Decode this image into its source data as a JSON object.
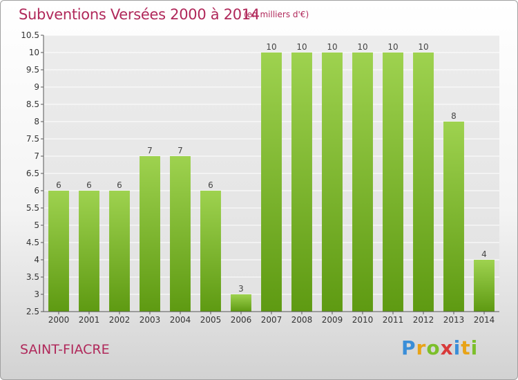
{
  "title": "Subventions Versées 2000 à 2014",
  "unit_note": "(en milliers d'€)",
  "commune": "SAINT-FIACRE",
  "logo": {
    "text": "Proxiti",
    "letters": [
      "P",
      "r",
      "o",
      "x",
      "i",
      "t",
      "i"
    ]
  },
  "colors": {
    "title": "#b0285a",
    "bar_top": "#9ed24f",
    "bar_bottom": "#5e9a12",
    "grid": "#ffffff",
    "axis": "#555555"
  },
  "chart_data": {
    "type": "bar",
    "categories": [
      "2000",
      "2001",
      "2002",
      "2003",
      "2004",
      "2005",
      "2006",
      "2007",
      "2008",
      "2009",
      "2010",
      "2011",
      "2012",
      "2013",
      "2014"
    ],
    "values": [
      6,
      6,
      6,
      7,
      7,
      6,
      3,
      10,
      10,
      10,
      10,
      10,
      10,
      8,
      4
    ],
    "data_labels": [
      "6",
      "6",
      "6",
      "7",
      "7",
      "6",
      "3",
      "10",
      "10",
      "10",
      "10",
      "10",
      "10",
      "8",
      "4"
    ],
    "ylim": [
      2.5,
      10.5
    ],
    "yticks": [
      2.5,
      3,
      3.5,
      4,
      4.5,
      5,
      5.5,
      6,
      6.5,
      7,
      7.5,
      8,
      8.5,
      9,
      9.5,
      10,
      10.5
    ],
    "ytick_labels": [
      "2.5",
      "3",
      "3.5",
      "4",
      "4.5",
      "5",
      "5.5",
      "6",
      "6.5",
      "7",
      "7.5",
      "8",
      "8.5",
      "9",
      "9.5",
      "10",
      "10.5"
    ],
    "grid": true,
    "title": "Subventions Versées 2000 à 2014",
    "xlabel": "",
    "ylabel": ""
  }
}
